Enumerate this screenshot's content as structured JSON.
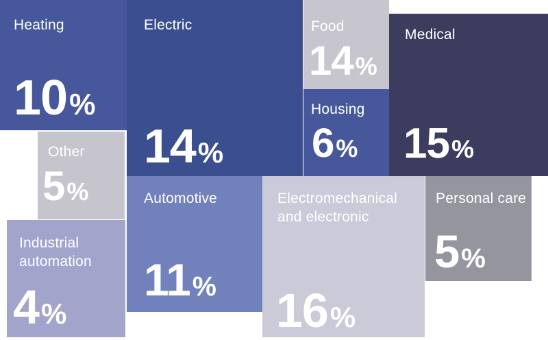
{
  "chart_data": {
    "type": "treemap",
    "layout": "mosaic of percentage tiles on white background",
    "value_suffix": "%",
    "text_color": "#FFFFFF",
    "background": "#FFFFFF",
    "items": [
      {
        "label": "Heating",
        "value": 10,
        "color": "#46589B"
      },
      {
        "label": "Electric",
        "value": 14,
        "color": "#3A4E90"
      },
      {
        "label": "Food",
        "value": 14,
        "color": "#C7C6CE"
      },
      {
        "label": "Medical",
        "value": 15,
        "color": "#3C3C5F"
      },
      {
        "label": "Housing",
        "value": 6,
        "color": "#46589B"
      },
      {
        "label": "Other",
        "value": 5,
        "color": "#C6C5CD"
      },
      {
        "label": "Industrial automation",
        "value": 4,
        "color": "#A3A4CB"
      },
      {
        "label": "Automotive",
        "value": 11,
        "color": "#7081BC"
      },
      {
        "label": "Electromechanical and electronic",
        "value": 16,
        "color": "#CBCAD9"
      },
      {
        "label": "Personal care",
        "value": 5,
        "color": "#95959F"
      }
    ]
  }
}
